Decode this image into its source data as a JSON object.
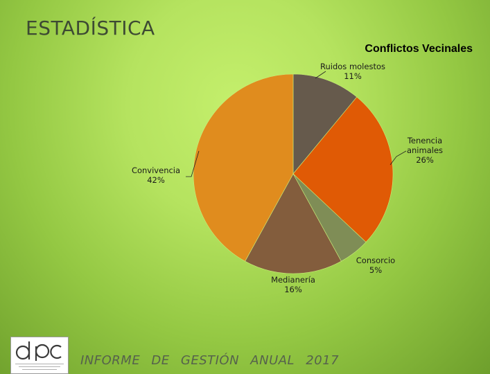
{
  "slide": {
    "title": "ESTADÍSTICA",
    "footer": "INFORME DE GESTIÓN ANUAL 2017",
    "logo_icon": "dpc-logo-icon"
  },
  "chart_data": {
    "type": "pie",
    "title": "Conflictos Vecinales",
    "legend": "none",
    "slices": [
      {
        "label": "Ruidos molestos",
        "label_lines": [
          "Ruidos molestos"
        ],
        "value": 11,
        "percent_label": "11%",
        "color": "#665a4c"
      },
      {
        "label": "Tenencia animales",
        "label_lines": [
          "Tenencia",
          "animales"
        ],
        "value": 26,
        "percent_label": "26%",
        "color": "#e05a05"
      },
      {
        "label": "Consorcio",
        "label_lines": [
          "Consorcio"
        ],
        "value": 5,
        "percent_label": "5%",
        "color": "#7f8d56"
      },
      {
        "label": "Medianería",
        "label_lines": [
          "Medianería"
        ],
        "value": 16,
        "percent_label": "16%",
        "color": "#835d3d"
      },
      {
        "label": "Convivencia",
        "label_lines": [
          "Convivencia"
        ],
        "value": 42,
        "percent_label": "42%",
        "color": "#e08c1e"
      }
    ]
  }
}
